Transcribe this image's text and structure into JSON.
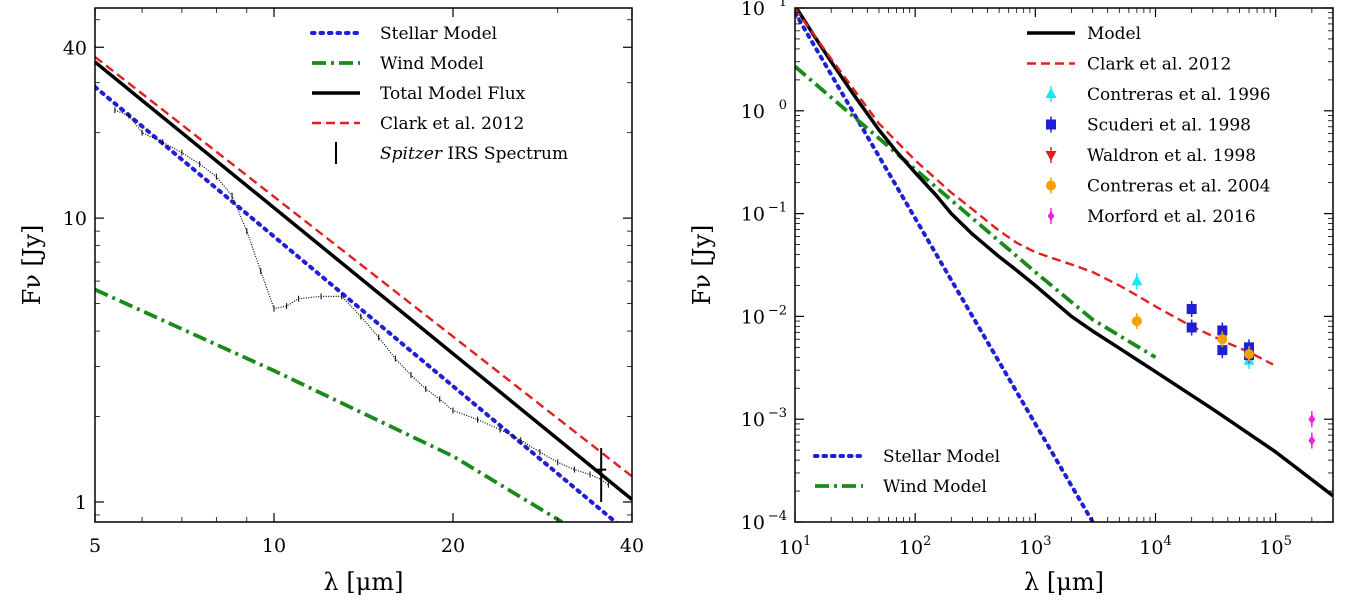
{
  "chart_data": [
    {
      "type": "line",
      "xlabel": "λ [μm]",
      "ylabel": "Fν [Jy]",
      "xscale": "log",
      "yscale": "log",
      "xlim": [
        5,
        40
      ],
      "ylim": [
        0.85,
        55
      ],
      "xticks": [
        "5",
        "10",
        "20",
        "40"
      ],
      "yticks": [
        "1",
        "10",
        "40"
      ],
      "legend_position": "top-right",
      "legend": [
        {
          "label": "Stellar Model",
          "style": "dotted",
          "color": "#1f1fd6"
        },
        {
          "label": "Wind Model",
          "style": "dashdot",
          "color": "#1a8a1a"
        },
        {
          "label": "Total Model Flux",
          "style": "solid",
          "color": "#000000"
        },
        {
          "label": "Clark et al. 2012",
          "style": "dashed",
          "color": "#e02020"
        },
        {
          "label_italic": "Spitzer",
          "label": " IRS Spectrum",
          "style": "errorbar",
          "color": "#000000"
        }
      ],
      "series": [
        {
          "name": "Stellar Model",
          "x": [
            5,
            40
          ],
          "y": [
            29,
            0.76
          ]
        },
        {
          "name": "Wind Model",
          "x": [
            5,
            10,
            20,
            30.5
          ],
          "y": [
            5.6,
            2.9,
            1.45,
            0.85
          ]
        },
        {
          "name": "Total Model Flux",
          "x": [
            5,
            40
          ],
          "y": [
            35.5,
            1.02
          ]
        },
        {
          "name": "Clark et al. 2012",
          "x": [
            5,
            40
          ],
          "y": [
            37,
            1.23
          ]
        },
        {
          "name": "Spitzer IRS Spectrum",
          "x": [
            5.4,
            5.7,
            6.0,
            6.5,
            7.0,
            7.5,
            8.0,
            8.5,
            9.0,
            9.5,
            10.0,
            10.5,
            11.0,
            12.0,
            13.0,
            14.0,
            15.0,
            16.0,
            17.0,
            18.0,
            19.0,
            20.0,
            22.0,
            24.0,
            26.0,
            28.0,
            30.0,
            32.0,
            34.0,
            35.5,
            36.5
          ],
          "y": [
            24,
            23,
            20,
            18.5,
            17,
            15.5,
            14,
            12,
            9.0,
            6.5,
            4.8,
            4.9,
            5.2,
            5.3,
            5.3,
            4.5,
            3.8,
            3.2,
            2.8,
            2.5,
            2.3,
            2.1,
            1.95,
            1.8,
            1.65,
            1.5,
            1.38,
            1.3,
            1.25,
            1.2,
            1.15
          ]
        }
      ]
    },
    {
      "type": "line",
      "xlabel": "λ [μm]",
      "ylabel": "Fν [Jy]",
      "xscale": "log",
      "yscale": "log",
      "xlim": [
        10,
        300000
      ],
      "ylim": [
        0.0001,
        10
      ],
      "xticks": [
        {
          "base": "10",
          "exp": "1"
        },
        {
          "base": "10",
          "exp": "2"
        },
        {
          "base": "10",
          "exp": "3"
        },
        {
          "base": "10",
          "exp": "4"
        },
        {
          "base": "10",
          "exp": "5"
        }
      ],
      "yticks": [
        {
          "base": "10",
          "exp": "−4"
        },
        {
          "base": "10",
          "exp": "−3"
        },
        {
          "base": "10",
          "exp": "−2"
        },
        {
          "base": "10",
          "exp": "−1"
        },
        {
          "base": "10",
          "exp": "0"
        },
        {
          "base": "10",
          "exp": "1"
        }
      ],
      "legend_top_position": "top-right",
      "legend_top": [
        {
          "label": "Model",
          "style": "solid",
          "color": "#000000"
        },
        {
          "label": "Clark et al. 2012",
          "style": "dashed",
          "color": "#e02020"
        },
        {
          "label": "Contreras et al. 1996",
          "style": "triangle",
          "color": "#19e6f0"
        },
        {
          "label": "Scuderi et al. 1998",
          "style": "square",
          "color": "#1f1fd6"
        },
        {
          "label": "Waldron et al. 1998",
          "style": "triangle-down",
          "color": "#e02020"
        },
        {
          "label": "Contreras et al. 2004",
          "style": "circle",
          "color": "#f5a000"
        },
        {
          "label": "Morford et al. 2016",
          "style": "diamond",
          "color": "#f020e0"
        }
      ],
      "legend_bottom_position": "bottom-left",
      "legend_bottom": [
        {
          "label": "Stellar Model",
          "style": "dotted",
          "color": "#1f1fd6"
        },
        {
          "label": "Wind Model",
          "style": "dashdot",
          "color": "#1a8a1a"
        }
      ],
      "series": [
        {
          "name": "Stellar Model",
          "x": [
            10,
            3000
          ],
          "y": [
            9,
            0.0001
          ]
        },
        {
          "name": "Wind Model",
          "x": [
            10,
            100,
            1000,
            3000,
            10000
          ],
          "y": [
            2.7,
            0.27,
            0.027,
            0.0093,
            0.004
          ]
        },
        {
          "name": "Model",
          "x": [
            10,
            15,
            20,
            30,
            50,
            70,
            100,
            150,
            200,
            300,
            500,
            700,
            1000,
            2000,
            3000,
            5000,
            10000,
            30000,
            100000,
            300000
          ],
          "y": [
            10.5,
            5.0,
            3.0,
            1.5,
            0.65,
            0.4,
            0.25,
            0.15,
            0.1,
            0.063,
            0.038,
            0.028,
            0.02,
            0.01,
            0.0072,
            0.0049,
            0.0029,
            0.00125,
            0.00048,
            0.00018
          ]
        },
        {
          "name": "Clark et al. 2012",
          "x": [
            10,
            20,
            50,
            100,
            200,
            300,
            500,
            700,
            1000,
            2000,
            3000,
            5000,
            7000,
            10000,
            20000,
            40000,
            60000,
            95000
          ],
          "y": [
            10,
            3.2,
            0.75,
            0.33,
            0.16,
            0.11,
            0.068,
            0.052,
            0.042,
            0.032,
            0.027,
            0.02,
            0.016,
            0.0125,
            0.008,
            0.0055,
            0.0045,
            0.0034
          ]
        },
        {
          "name": "Contreras et al. 1996",
          "x": [
            7000,
            60000
          ],
          "y": [
            0.022,
            0.0037
          ]
        },
        {
          "name": "Scuderi et al. 1998",
          "x": [
            20000,
            20000,
            36000,
            36000,
            60000,
            60000
          ],
          "y": [
            0.0118,
            0.0078,
            0.0073,
            0.0047,
            0.005,
            0.0042
          ]
        },
        {
          "name": "Contreras et al. 2004",
          "x": [
            7000,
            36000,
            60000
          ],
          "y": [
            0.009,
            0.006,
            0.0043
          ]
        },
        {
          "name": "Morford et al. 2016",
          "x": [
            200000,
            200000
          ],
          "y": [
            0.001,
            0.00062
          ]
        }
      ]
    }
  ]
}
